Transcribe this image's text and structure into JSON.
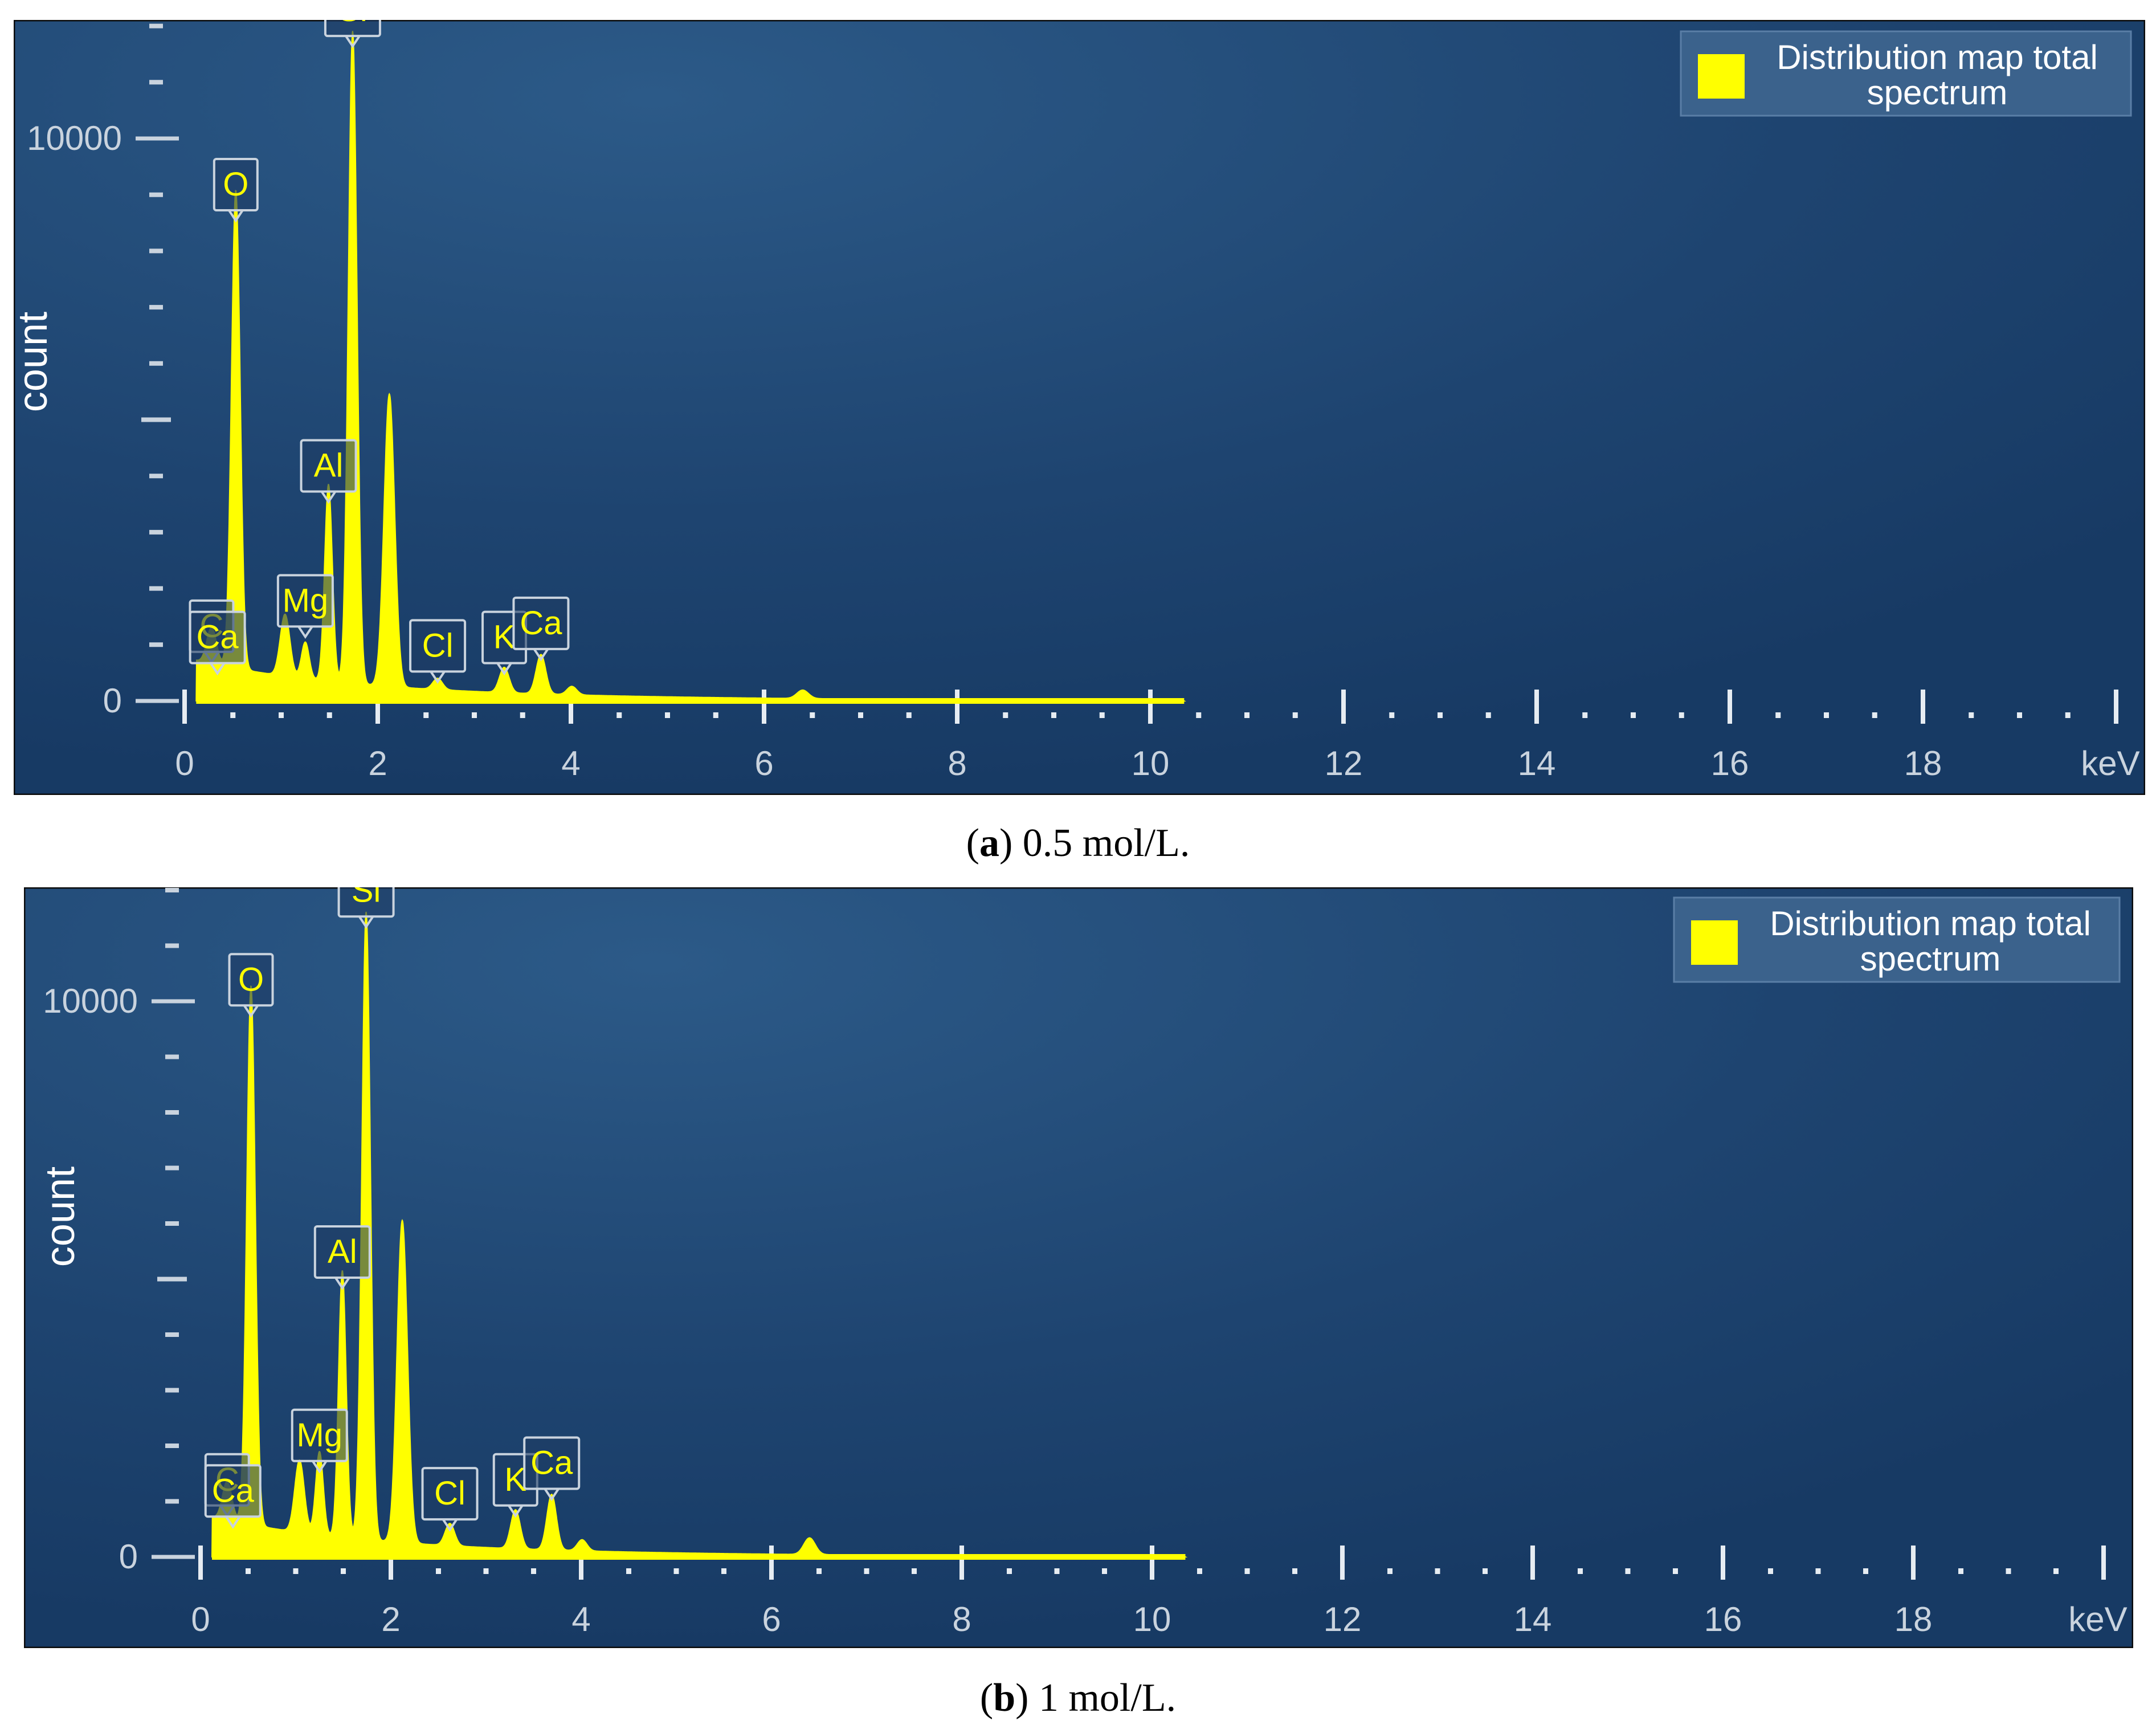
{
  "chart_data": [
    {
      "type": "area",
      "panel_caption": {
        "letter": "a",
        "text": "0.5 mol/L."
      },
      "legend": {
        "label_line1": "Distribution map total",
        "label_line2": "spectrum",
        "placement": "top-right"
      },
      "xlabel": "keV",
      "ylabel": "count",
      "xlim": [
        0,
        20
      ],
      "ylim": [
        0,
        12000
      ],
      "x_ticks": [
        "0",
        "2",
        "4",
        "6",
        "8",
        "10",
        "12",
        "14",
        "16",
        "18"
      ],
      "y_ticks": [
        "0",
        "10000"
      ],
      "series": [
        {
          "color": "#ffff00",
          "peaks": [
            {
              "x": 0.28,
              "y": 650,
              "w": 0.05
            },
            {
              "x": 0.53,
              "y": 8500,
              "w": 0.045
            },
            {
              "x": 1.04,
              "y": 1100,
              "w": 0.05
            },
            {
              "x": 1.25,
              "y": 650,
              "w": 0.04
            },
            {
              "x": 1.49,
              "y": 3500,
              "w": 0.04
            },
            {
              "x": 1.74,
              "y": 11600,
              "w": 0.045
            },
            {
              "x": 2.12,
              "y": 5200,
              "w": 0.055
            },
            {
              "x": 2.62,
              "y": 200,
              "w": 0.05
            },
            {
              "x": 3.31,
              "y": 450,
              "w": 0.05
            },
            {
              "x": 3.69,
              "y": 700,
              "w": 0.05
            },
            {
              "x": 4.01,
              "y": 150,
              "w": 0.05
            },
            {
              "x": 6.4,
              "y": 150,
              "w": 0.06
            }
          ]
        }
      ],
      "element_labels": [
        {
          "text": "Si",
          "x": 1.74,
          "y": 11600
        },
        {
          "text": "O",
          "x": 0.53,
          "y": 8500
        },
        {
          "text": "Al",
          "x": 1.49,
          "y": 3500
        },
        {
          "text": "C",
          "x": 0.28,
          "y": 650
        },
        {
          "text": "Ca",
          "x": 0.34,
          "y": 450
        },
        {
          "text": "Mg",
          "x": 1.25,
          "y": 1100
        },
        {
          "text": "Cl",
          "x": 2.62,
          "y": 300
        },
        {
          "text": "K",
          "x": 3.31,
          "y": 450
        },
        {
          "text": "Ca",
          "x": 3.69,
          "y": 700
        }
      ]
    },
    {
      "type": "area",
      "panel_caption": {
        "letter": "b",
        "text": "1 mol/L."
      },
      "legend": {
        "label_line1": "Distribution map total",
        "label_line2": "spectrum",
        "placement": "top-right"
      },
      "xlabel": "keV",
      "ylabel": "count",
      "xlim": [
        0,
        20
      ],
      "ylim": [
        0,
        12000
      ],
      "x_ticks": [
        "0",
        "2",
        "4",
        "6",
        "8",
        "10",
        "12",
        "14",
        "16",
        "18"
      ],
      "y_ticks": [
        "0",
        "10000"
      ],
      "series": [
        {
          "color": "#ffff00",
          "peaks": [
            {
              "x": 0.28,
              "y": 700,
              "w": 0.05
            },
            {
              "x": 0.53,
              "y": 9700,
              "w": 0.045
            },
            {
              "x": 1.04,
              "y": 1300,
              "w": 0.05
            },
            {
              "x": 1.25,
              "y": 1500,
              "w": 0.04
            },
            {
              "x": 1.49,
              "y": 4800,
              "w": 0.04
            },
            {
              "x": 1.74,
              "y": 11300,
              "w": 0.045
            },
            {
              "x": 2.12,
              "y": 5800,
              "w": 0.055
            },
            {
              "x": 2.62,
              "y": 400,
              "w": 0.05
            },
            {
              "x": 3.31,
              "y": 700,
              "w": 0.05
            },
            {
              "x": 3.69,
              "y": 1000,
              "w": 0.05
            },
            {
              "x": 4.01,
              "y": 200,
              "w": 0.05
            },
            {
              "x": 6.4,
              "y": 300,
              "w": 0.06
            }
          ]
        }
      ],
      "element_labels": [
        {
          "text": "Si",
          "x": 1.74,
          "y": 11300
        },
        {
          "text": "O",
          "x": 0.53,
          "y": 9700
        },
        {
          "text": "Al",
          "x": 1.49,
          "y": 4800
        },
        {
          "text": "C",
          "x": 0.28,
          "y": 700
        },
        {
          "text": "Ca",
          "x": 0.34,
          "y": 500
        },
        {
          "text": "Mg",
          "x": 1.25,
          "y": 1500
        },
        {
          "text": "Cl",
          "x": 2.62,
          "y": 450
        },
        {
          "text": "K",
          "x": 3.31,
          "y": 700
        },
        {
          "text": "Ca",
          "x": 3.69,
          "y": 1000
        }
      ]
    }
  ]
}
